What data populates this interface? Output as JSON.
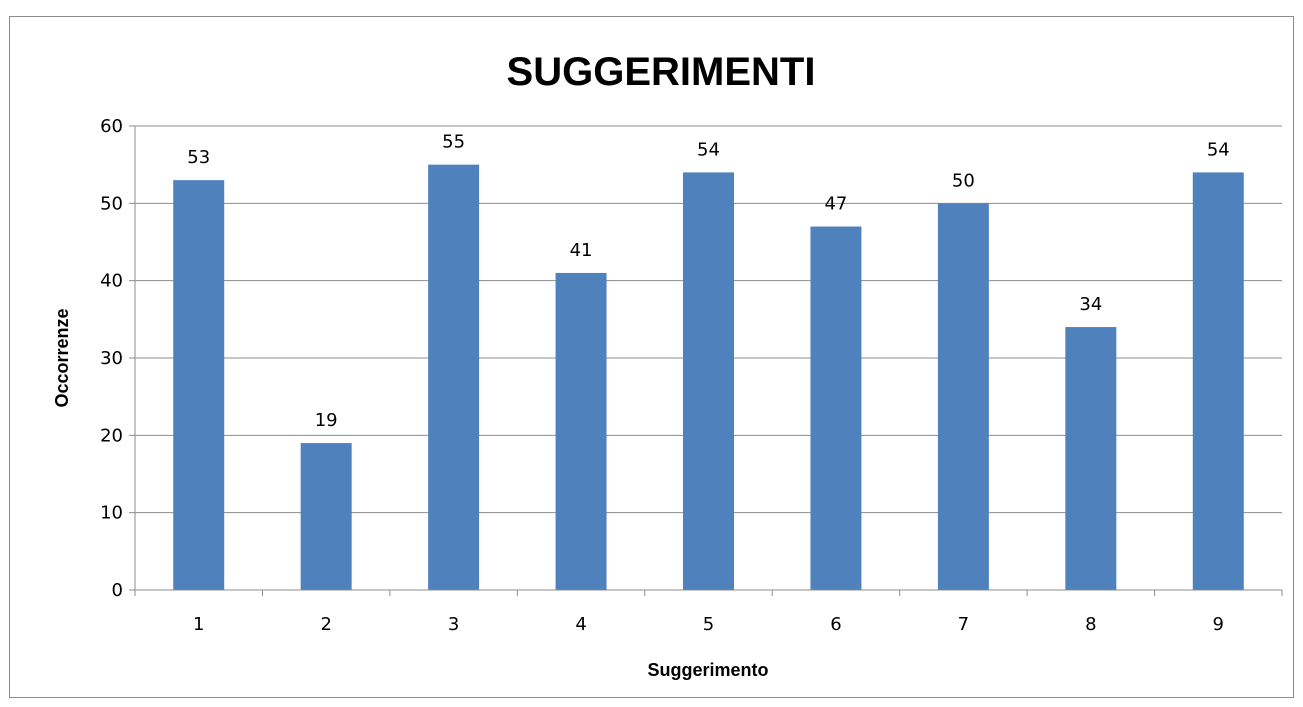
{
  "chart_data": {
    "type": "bar",
    "title": "SUGGERIMENTI",
    "xlabel": "Suggerimento",
    "ylabel": "Occorrenze",
    "categories": [
      "1",
      "2",
      "3",
      "4",
      "5",
      "6",
      "7",
      "8",
      "9"
    ],
    "values": [
      53,
      19,
      55,
      41,
      54,
      47,
      50,
      34,
      54
    ],
    "ylim": [
      0,
      60
    ],
    "yticks": [
      "0",
      "10",
      "20",
      "30",
      "40",
      "50",
      "60"
    ],
    "grid": true,
    "legend": "none",
    "bar_color": "#4F81BD"
  }
}
